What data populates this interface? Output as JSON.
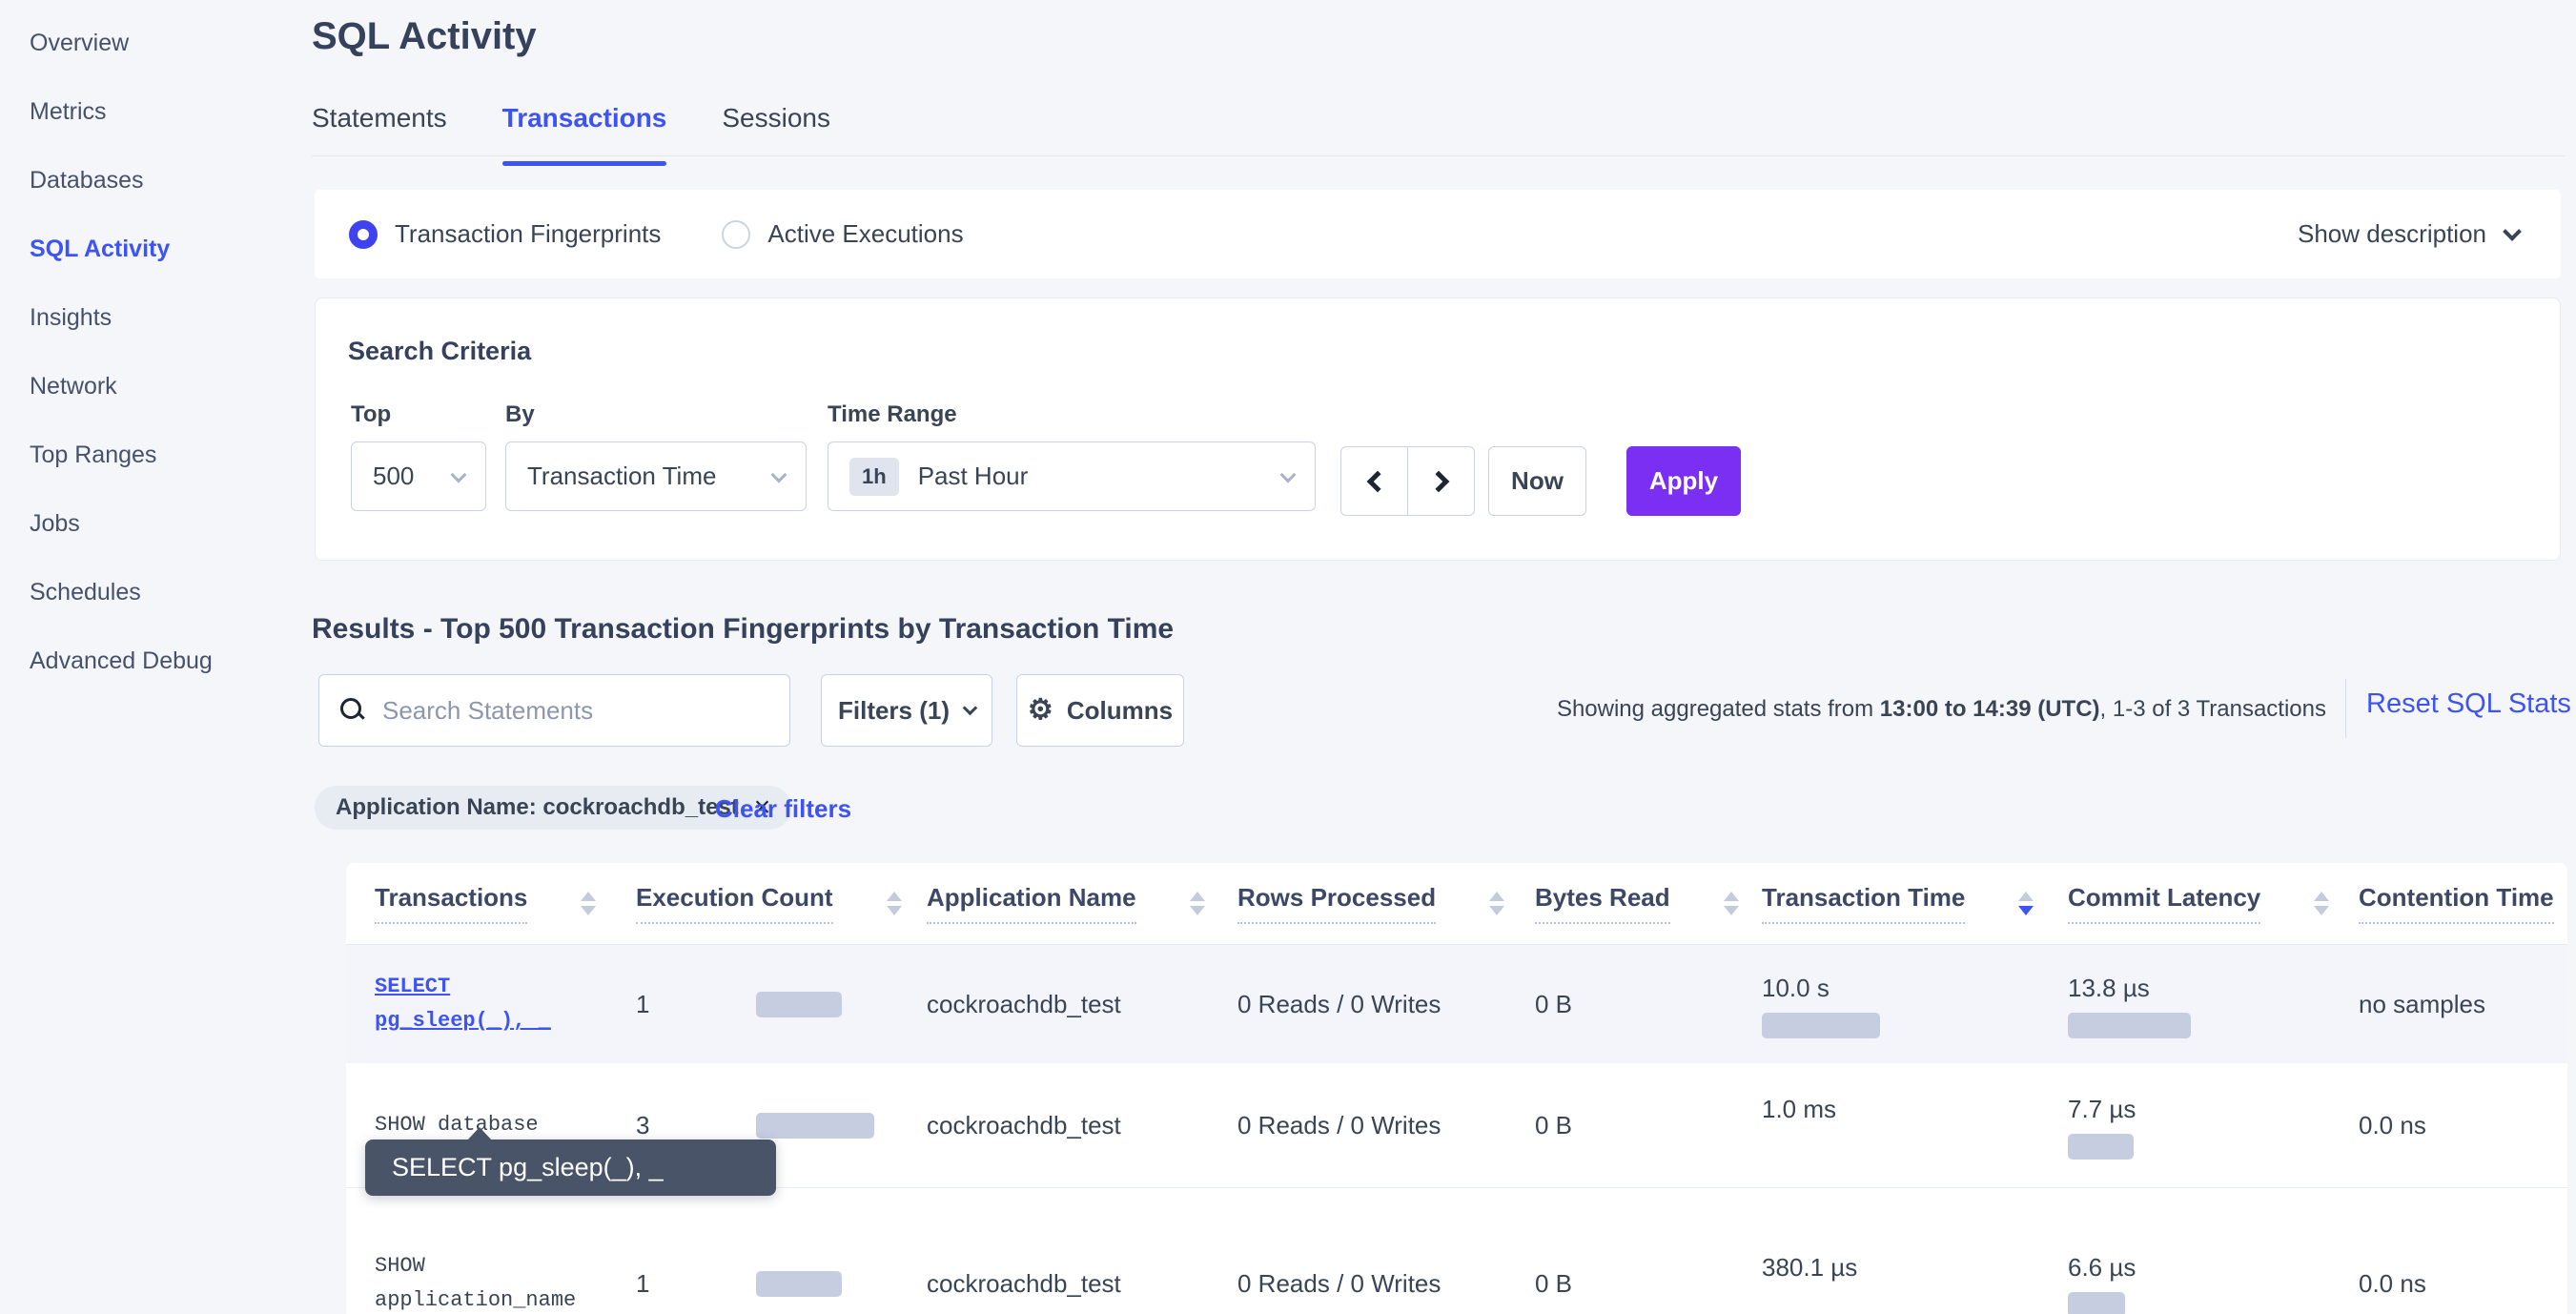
{
  "colors": {
    "accent": "#3e53f4",
    "apply_purple": "#7b2ff2",
    "bar_gray": "#c6cde1",
    "tooltip_bg": "#4a5469",
    "row_hover": "#f3f5fa"
  },
  "icons": {
    "gear": "⚙",
    "close": "×"
  },
  "sidebar": {
    "items": [
      {
        "label": "Overview",
        "active": false
      },
      {
        "label": "Metrics",
        "active": false
      },
      {
        "label": "Databases",
        "active": false
      },
      {
        "label": "SQL Activity",
        "active": true
      },
      {
        "label": "Insights",
        "active": false
      },
      {
        "label": "Network",
        "active": false
      },
      {
        "label": "Top Ranges",
        "active": false
      },
      {
        "label": "Jobs",
        "active": false
      },
      {
        "label": "Schedules",
        "active": false
      },
      {
        "label": "Advanced Debug",
        "active": false
      }
    ]
  },
  "page": {
    "title": "SQL Activity"
  },
  "tabs": [
    {
      "label": "Statements",
      "active": false
    },
    {
      "label": "Transactions",
      "active": true
    },
    {
      "label": "Sessions",
      "active": false
    }
  ],
  "view_toggle": {
    "options": [
      {
        "label": "Transaction Fingerprints",
        "selected": true
      },
      {
        "label": "Active Executions",
        "selected": false
      }
    ],
    "show_description": "Show description"
  },
  "search_criteria": {
    "title": "Search Criteria",
    "top_label": "Top",
    "top_value": "500",
    "by_label": "By",
    "by_value": "Transaction Time",
    "time_label": "Time Range",
    "time_badge": "1h",
    "time_value": "Past Hour",
    "now_label": "Now",
    "apply_label": "Apply"
  },
  "results": {
    "heading": "Results - Top 500 Transaction Fingerprints by Transaction Time",
    "search_placeholder": "Search Statements",
    "filters_label": "Filters (1)",
    "columns_label": "Columns",
    "stats_prefix": "Showing aggregated stats from ",
    "stats_bold": "13:00 to 14:39 (UTC)",
    "stats_suffix": ", 1-3 of 3 Transactions",
    "reset_label": "Reset SQL Stats",
    "filter_chip": "Application Name: cockroachdb_test",
    "clear_filters": "Clear filters"
  },
  "table": {
    "columns": [
      {
        "label": "Transactions",
        "sort": null
      },
      {
        "label": "Execution Count",
        "sort": null
      },
      {
        "label": "Application Name",
        "sort": null
      },
      {
        "label": "Rows Processed",
        "sort": null
      },
      {
        "label": "Bytes Read",
        "sort": null
      },
      {
        "label": "Transaction Time",
        "sort": "desc"
      },
      {
        "label": "Commit Latency",
        "sort": null
      },
      {
        "label": "Contention Time",
        "sort": null
      }
    ],
    "rows": [
      {
        "transaction": "SELECT pg_sleep(_), _",
        "is_link": true,
        "execution_count": "1",
        "execution_bar": 90,
        "application_name": "cockroachdb_test",
        "rows_processed": "0 Reads / 0 Writes",
        "bytes_read": "0 B",
        "transaction_time": "10.0 s",
        "transaction_time_bar": 124,
        "commit_latency": "13.8 µs",
        "commit_latency_bar": 129,
        "contention_time": "no samples"
      },
      {
        "transaction": "SHOW database",
        "is_link": false,
        "execution_count": "3",
        "execution_bar": 124,
        "application_name": "cockroachdb_test",
        "rows_processed": "0 Reads / 0 Writes",
        "bytes_read": "0 B",
        "transaction_time": "1.0 ms",
        "transaction_time_bar": 0,
        "commit_latency": "7.7 µs",
        "commit_latency_bar": 69,
        "contention_time": "0.0 ns"
      },
      {
        "transaction": "SHOW application_name",
        "is_link": false,
        "execution_count": "1",
        "execution_bar": 90,
        "application_name": "cockroachdb_test",
        "rows_processed": "0 Reads / 0 Writes",
        "bytes_read": "0 B",
        "transaction_time": "380.1 µs",
        "transaction_time_bar": 0,
        "commit_latency": "6.6 µs",
        "commit_latency_bar": 60,
        "contention_time": "0.0 ns"
      }
    ]
  },
  "tooltip": {
    "text": "SELECT pg_sleep(_), _"
  }
}
